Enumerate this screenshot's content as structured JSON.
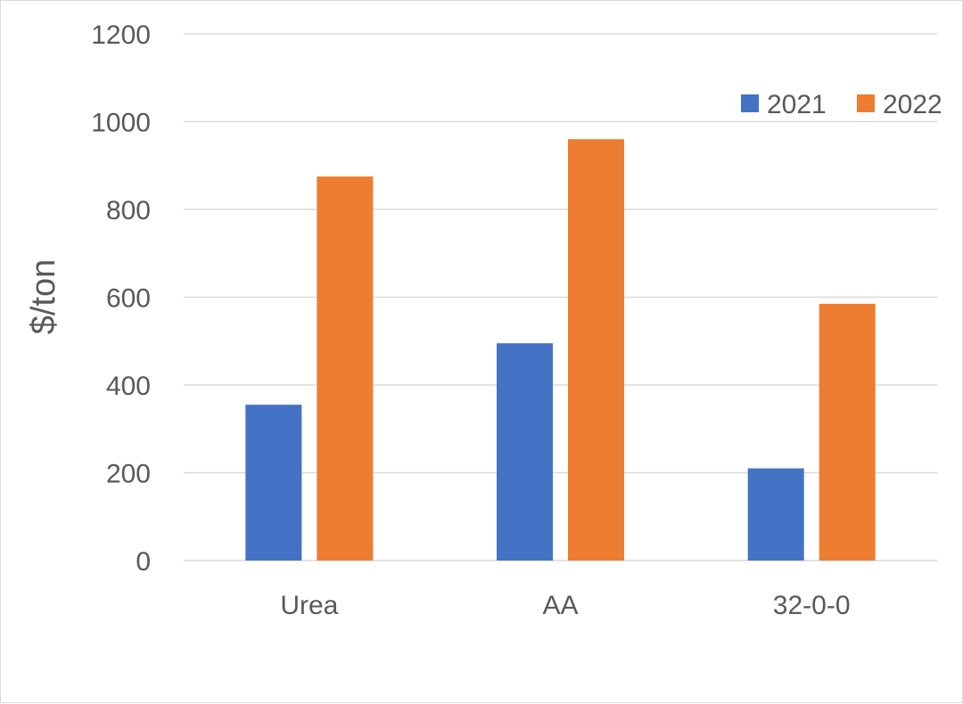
{
  "chart_data": {
    "type": "bar",
    "title": "",
    "xlabel": "",
    "ylabel": "$/ton",
    "ylim": [
      0,
      1200
    ],
    "yticks": [
      0,
      200,
      400,
      600,
      800,
      1000,
      1200
    ],
    "grid": true,
    "legend_position": "top-right",
    "categories": [
      "Urea",
      "AA",
      "32-0-0"
    ],
    "series": [
      {
        "name": "2021",
        "color": "#4472C4",
        "values": [
          355,
          495,
          210
        ]
      },
      {
        "name": "2022",
        "color": "#ED7D31",
        "values": [
          875,
          960,
          585
        ]
      }
    ]
  }
}
